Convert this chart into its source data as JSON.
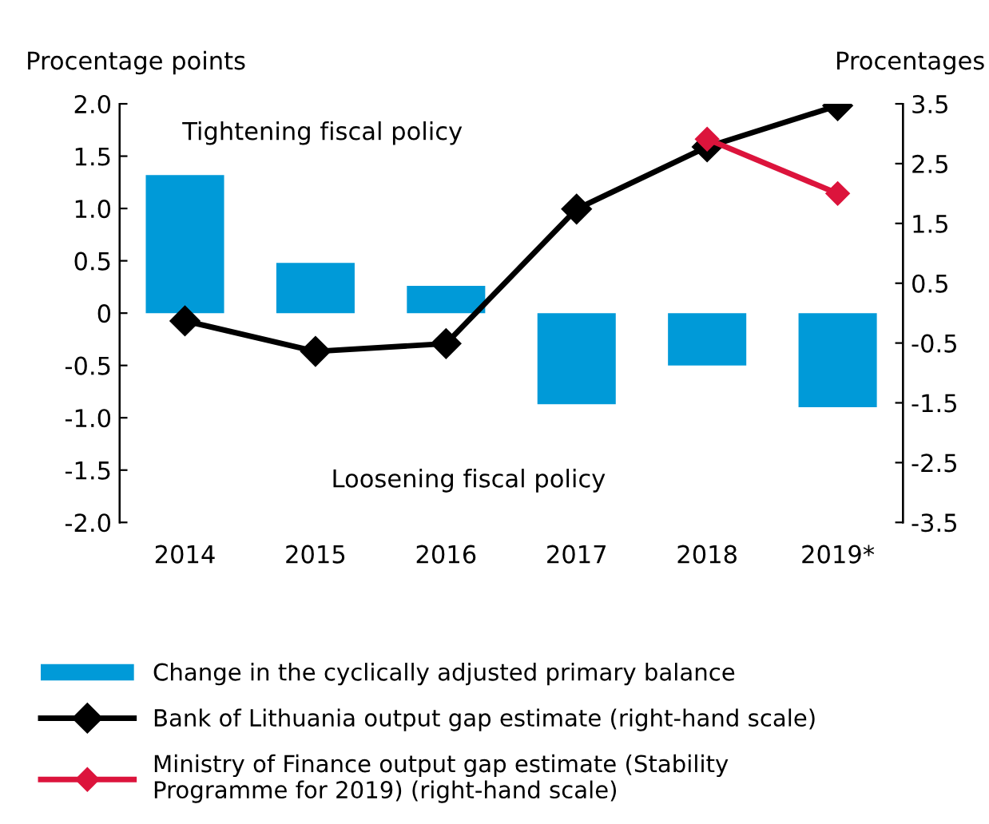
{
  "chart_data": {
    "type": "bar",
    "categories": [
      "2014",
      "2015",
      "2016",
      "2017",
      "2018",
      "2019*"
    ],
    "ylabel": "Procentage points",
    "y2label": "Procentages",
    "annotations": [
      "Tightening fiscal policy",
      "Loosening fiscal policy"
    ],
    "series": [
      {
        "name": "Change in the cyclically adjusted primary balance",
        "color": "#009ad8",
        "values": [
          1.32,
          0.48,
          0.26,
          -0.87,
          -0.5,
          -0.9
        ]
      },
      {
        "name": "Bank of Lithuania output gap estimate (right-hand scale)",
        "type": "line",
        "axis": "y2",
        "color": "#000000",
        "values": [
          -0.13,
          -0.64,
          -0.51,
          1.74,
          2.78,
          3.47
        ]
      },
      {
        "name": "Ministry of Finance output gap estimate (Stability\nProgramme for 2019) (right-hand scale)",
        "type": "line",
        "axis": "y2",
        "color": "#dc143c",
        "values": [
          null,
          null,
          null,
          null,
          2.91,
          2.0
        ]
      }
    ],
    "ylim": [
      -2,
      2
    ],
    "yticks": [
      {
        "value": -2,
        "label": "-2.0"
      },
      {
        "value": -1.5,
        "label": "-1.5"
      },
      {
        "value": -1,
        "label": "-1.0"
      },
      {
        "value": -0.5,
        "label": "-0.5"
      },
      0,
      {
        "value": 0.5,
        "label": "0.5"
      },
      {
        "value": 1,
        "label": "1.0"
      },
      {
        "value": 1.5,
        "label": "1.5"
      },
      {
        "value": 2,
        "label": "2.0"
      }
    ],
    "y2lim": [
      -3.5,
      3.5
    ],
    "y2ticks": [
      -3.5,
      -2.5,
      -1.5,
      -0.5,
      0.5,
      1.5,
      2.5,
      3.5
    ],
    "marker": "diamond",
    "grid": false,
    "legend": "bottom"
  }
}
